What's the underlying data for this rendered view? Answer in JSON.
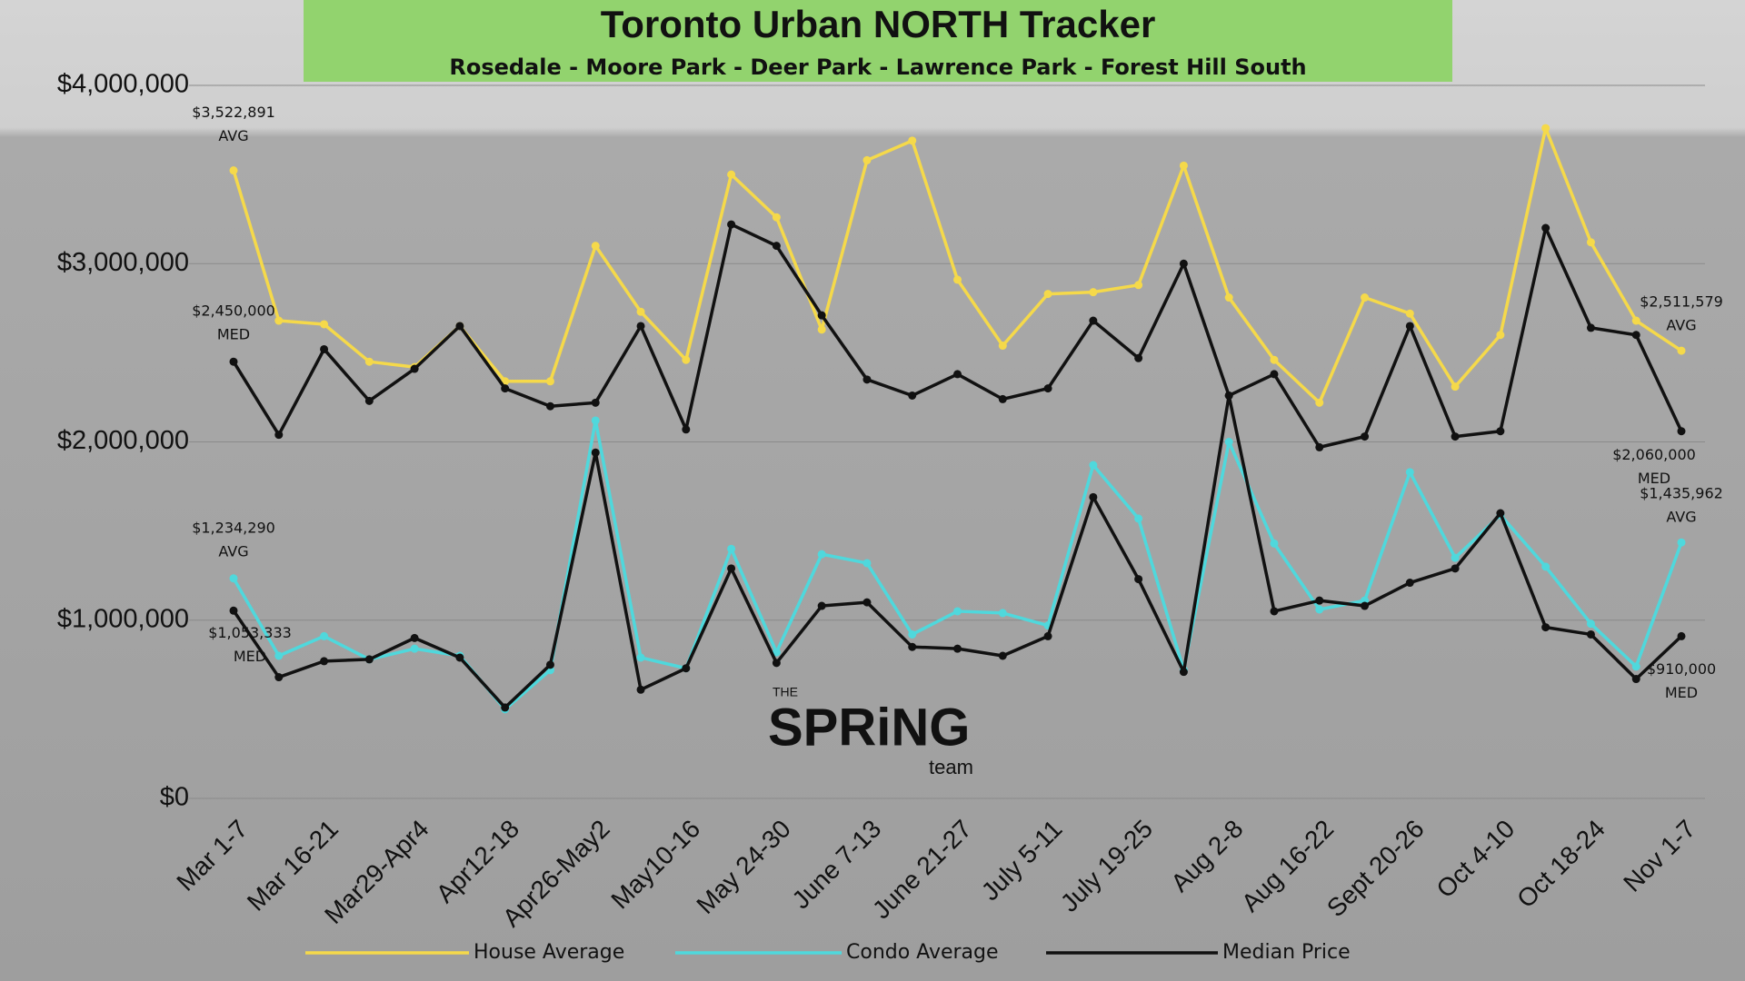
{
  "chart_data": {
    "type": "line",
    "title": "Toronto Urban NORTH Tracker",
    "subtitle": "Rosedale - Moore Park - Deer Park - Lawrence Park - Forest Hill South",
    "categories": [
      "Mar 1-7",
      null,
      "Mar 16-21",
      null,
      "Mar29-Apr4",
      null,
      "Apr12-18",
      null,
      "Apr26-May2",
      null,
      "May10-16",
      null,
      "May 24-30",
      null,
      "June 7-13",
      null,
      "June 21-27",
      null,
      "July 5-11",
      null,
      "July 19-25",
      null,
      "Aug 2-8",
      null,
      "Aug 16-22",
      null,
      "Sept 20-26",
      null,
      "Oct 4-10",
      null,
      "Oct 18-24",
      null,
      "Nov 1-7"
    ],
    "ylim": [
      0,
      4000000
    ],
    "yticks": [
      {
        "value": 0,
        "label": "$0"
      },
      {
        "value": 1000000,
        "label": "$1,000,000"
      },
      {
        "value": 2000000,
        "label": "$2,000,000"
      },
      {
        "value": 3000000,
        "label": "$3,000,000"
      },
      {
        "value": 4000000,
        "label": "$4,000,000"
      }
    ],
    "grid": true,
    "legend": "bottom",
    "series": [
      {
        "name": "House Average",
        "color": "#f5d94a",
        "tag": "AVG",
        "values": [
          3522891,
          2680000,
          2660000,
          2450000,
          2420000,
          2650000,
          2340000,
          2340000,
          3100000,
          2730000,
          2460000,
          3500000,
          3260000,
          2630000,
          3580000,
          3690000,
          2910000,
          2540000,
          2830000,
          2840000,
          2880000,
          3550000,
          2810000,
          2460000,
          2220000,
          2810000,
          2720000,
          2310000,
          2600000,
          3760000,
          3120000,
          2680000,
          2511579
        ],
        "value_labels": [
          "$3,522,891",
          null,
          null,
          null,
          null,
          null,
          null,
          null,
          null,
          null,
          null,
          null,
          null,
          null,
          null,
          null,
          null,
          null,
          null,
          null,
          null,
          null,
          null,
          null,
          null,
          null,
          null,
          null,
          null,
          null,
          null,
          null,
          "$2,511,579"
        ]
      },
      {
        "name": "Condo Average",
        "color": "#4fd8dc",
        "tag": "AVG",
        "values": [
          1234290,
          800000,
          910000,
          780000,
          840000,
          800000,
          500000,
          720000,
          2120000,
          790000,
          730000,
          1400000,
          820000,
          1370000,
          1320000,
          920000,
          1050000,
          1040000,
          970000,
          1870000,
          1570000,
          720000,
          2000000,
          1430000,
          1060000,
          1110000,
          1830000,
          1350000,
          1590000,
          1300000,
          980000,
          740000,
          1435962
        ],
        "value_labels": [
          "$1,234,290",
          null,
          null,
          null,
          null,
          null,
          null,
          null,
          null,
          null,
          null,
          null,
          null,
          null,
          null,
          null,
          null,
          null,
          null,
          null,
          null,
          null,
          null,
          null,
          null,
          null,
          null,
          null,
          null,
          null,
          null,
          null,
          "$1,435,962"
        ]
      },
      {
        "name": "Median Price",
        "color": "#111111",
        "tag": "MED",
        "values": [
          2450000,
          2040000,
          2520000,
          2230000,
          2410000,
          2650000,
          2300000,
          2200000,
          2220000,
          2650000,
          2070000,
          3220000,
          3100000,
          2710000,
          2350000,
          2260000,
          2380000,
          2240000,
          2300000,
          2680000,
          2470000,
          3000000,
          2260000,
          2380000,
          1970000,
          2030000,
          2650000,
          2030000,
          2060000,
          3200000,
          2640000,
          2600000,
          2060000
        ],
        "value_labels": [
          "$2,450,000",
          null,
          null,
          null,
          null,
          null,
          null,
          null,
          null,
          null,
          null,
          null,
          null,
          null,
          null,
          null,
          null,
          null,
          null,
          null,
          null,
          null,
          null,
          null,
          null,
          null,
          null,
          null,
          null,
          null,
          null,
          null,
          "$2,060,000"
        ]
      },
      {
        "color": "#111111",
        "tag": "MED",
        "values": [
          1053333,
          680000,
          770000,
          780000,
          900000,
          790000,
          510000,
          750000,
          1940000,
          610000,
          730000,
          1290000,
          760000,
          1080000,
          1100000,
          850000,
          840000,
          800000,
          910000,
          1690000,
          1230000,
          710000,
          2260000,
          1050000,
          1110000,
          1080000,
          1210000,
          1290000,
          1600000,
          960000,
          920000,
          670000,
          910000
        ],
        "value_labels": [
          "$1,053,333",
          null,
          null,
          null,
          null,
          null,
          null,
          null,
          null,
          null,
          null,
          null,
          null,
          null,
          null,
          null,
          null,
          null,
          null,
          null,
          null,
          null,
          null,
          null,
          null,
          null,
          null,
          null,
          null,
          null,
          null,
          null,
          "$910,000"
        ]
      }
    ]
  },
  "logo": {
    "top": "THE",
    "main": "SPRiNG",
    "bottom": "team"
  }
}
